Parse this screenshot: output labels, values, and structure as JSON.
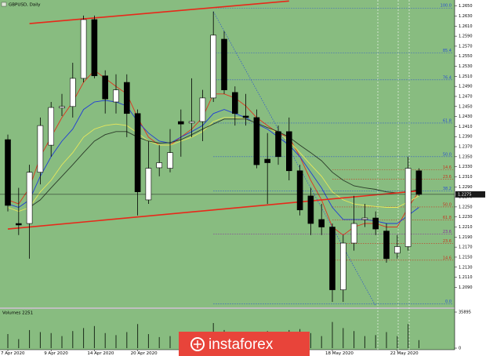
{
  "chart_data": {
    "type": "candlestick",
    "title": "GBPUSD, Daily",
    "bull_color": "#ffffff",
    "bear_color": "#000000",
    "background": "#88bc80",
    "categories": [
      "7 Apr 2020",
      null,
      null,
      null,
      "9 Apr 2020",
      null,
      null,
      null,
      "14 Apr 2020",
      null,
      null,
      null,
      "20 Apr 2020",
      null,
      null,
      null,
      null,
      null,
      null,
      null,
      null,
      null,
      null,
      null,
      null,
      null,
      null,
      null,
      null,
      null,
      "18 May 2020",
      null,
      null,
      null,
      null,
      null,
      "22 May 2020",
      null,
      null
    ],
    "open": [
      1.2384,
      1.2217,
      1.2217,
      1.2319,
      1.2373,
      1.2447,
      1.245,
      1.2506,
      1.2623,
      1.2511,
      1.2459,
      1.2498,
      1.2436,
      1.2264,
      1.2328,
      1.2327,
      1.242,
      1.2417,
      1.242,
      1.2467,
      1.2584,
      1.2478,
      1.2431,
      1.2428,
      1.2345,
      1.24,
      1.24,
      1.2322,
      1.2272,
      1.2225,
      1.221,
      1.2085,
      1.2178,
      1.2225,
      1.2228,
      1.2202,
      1.2158,
      1.2171,
      1.2322
    ],
    "high": [
      1.2394,
      1.2288,
      1.2334,
      1.2428,
      1.2459,
      1.2475,
      1.2537,
      1.2631,
      1.2631,
      1.2522,
      1.2514,
      1.2514,
      1.2444,
      1.2381,
      1.2373,
      1.2405,
      1.2444,
      1.2506,
      1.2483,
      1.2639,
      1.26,
      1.249,
      1.2475,
      1.2444,
      1.2397,
      1.2412,
      1.2428,
      1.2334,
      1.2288,
      1.2256,
      1.2217,
      1.2194,
      1.2272,
      1.2256,
      1.2241,
      1.2217,
      1.2194,
      1.235,
      1.2327
    ],
    "low": [
      1.2241,
      1.2194,
      1.2147,
      1.2295,
      1.235,
      1.2431,
      1.2428,
      1.2498,
      1.2506,
      1.2436,
      1.2436,
      1.2389,
      1.2233,
      1.2256,
      1.2311,
      1.2319,
      1.235,
      1.2389,
      1.2381,
      1.2459,
      1.2475,
      1.2412,
      1.2412,
      1.2327,
      1.2256,
      1.2334,
      1.2303,
      1.2233,
      1.2194,
      1.2194,
      1.2061,
      1.2061,
      1.2163,
      1.221,
      1.2194,
      1.2139,
      1.2147,
      1.2163,
      1.2272
    ],
    "close": [
      1.2253,
      1.2214,
      1.2319,
      1.2412,
      1.2448,
      1.245,
      1.2506,
      1.2623,
      1.2511,
      1.2465,
      1.2483,
      1.2436,
      1.228,
      1.2327,
      1.2338,
      1.2358,
      1.2415,
      1.242,
      1.2467,
      1.2592,
      1.2483,
      1.2436,
      1.2428,
      1.2334,
      1.2338,
      1.235,
      1.2322,
      1.2244,
      1.2217,
      1.221,
      1.2085,
      1.2178,
      1.2217,
      1.2228,
      1.2206,
      1.2147,
      1.2171,
      1.2327,
      1.2275
    ],
    "last_price_label": "1.2275",
    "ma": [
      {
        "color": "#e0341e",
        "values": [
          1.2264,
          1.2256,
          1.2288,
          1.235,
          1.2389,
          1.2428,
          1.2459,
          1.2498,
          1.2522,
          1.2506,
          1.249,
          1.2475,
          1.2428,
          1.2389,
          1.2373,
          1.2373,
          1.2389,
          1.2405,
          1.2428,
          1.2475,
          1.2475,
          1.2467,
          1.2451,
          1.2428,
          1.2412,
          1.2397,
          1.2389,
          1.235,
          1.2303,
          1.2264,
          1.221,
          1.2194,
          1.221,
          1.2217,
          1.2217,
          1.221,
          1.221,
          1.2249,
          1.228
        ]
      },
      {
        "color": "#1f3cd6",
        "values": [
          1.2256,
          1.2249,
          1.2264,
          1.2311,
          1.235,
          1.2381,
          1.2405,
          1.2444,
          1.2459,
          1.2462,
          1.2459,
          1.2451,
          1.242,
          1.2397,
          1.2381,
          1.2377,
          1.2389,
          1.24,
          1.2412,
          1.2436,
          1.2444,
          1.2436,
          1.2428,
          1.2415,
          1.2405,
          1.2389,
          1.2373,
          1.235,
          1.2319,
          1.2288,
          1.2249,
          1.2225,
          1.2225,
          1.2225,
          1.2222,
          1.2217,
          1.2217,
          1.2233,
          1.2249
        ]
      },
      {
        "color": "#e8e85a",
        "values": [
          1.2249,
          1.2241,
          1.2249,
          1.228,
          1.2303,
          1.2334,
          1.2358,
          1.2389,
          1.2405,
          1.2412,
          1.2415,
          1.2412,
          1.2397,
          1.2381,
          1.2373,
          1.2373,
          1.2381,
          1.2389,
          1.24,
          1.242,
          1.2428,
          1.2428,
          1.2425,
          1.2417,
          1.2408,
          1.2397,
          1.2381,
          1.2358,
          1.2334,
          1.2311,
          1.228,
          1.2264,
          1.2256,
          1.2253,
          1.2251,
          1.2249,
          1.2249,
          1.226,
          1.2272
        ]
      },
      {
        "color": "#2a3a28",
        "values": [
          null,
          null,
          1.2249,
          1.2264,
          1.2288,
          1.2311,
          1.2334,
          1.2358,
          1.2381,
          1.2394,
          1.24,
          1.24,
          1.2389,
          1.2381,
          1.2377,
          1.2378,
          1.2384,
          1.2394,
          1.2405,
          1.2415,
          1.2425,
          1.2425,
          1.2425,
          1.2417,
          1.2408,
          1.24,
          1.2389,
          1.2373,
          1.2358,
          1.2342,
          1.2319,
          1.2303,
          1.2292,
          1.2288,
          1.2285,
          1.228,
          1.2278,
          1.228,
          1.2285
        ]
      }
    ],
    "trendlines": [
      {
        "color": "#e8281a",
        "points": [
          [
            2,
            1.2615
          ],
          [
            26,
            1.266
          ]
        ]
      },
      {
        "color": "#e8281a",
        "points": [
          [
            0,
            1.2206
          ],
          [
            38,
            1.2282
          ]
        ]
      },
      {
        "color": "#2a50d0",
        "points": [
          [
            19,
            1.2639
          ],
          [
            34,
            1.2053
          ]
        ]
      }
    ],
    "fibo": [
      {
        "label": "100.0",
        "value": 1.2646,
        "color": "#2a50d0",
        "from": 19
      },
      {
        "label": "85.4",
        "value": 1.2557,
        "color": "#2a50d0",
        "from": 19
      },
      {
        "label": "76.4",
        "value": 1.2503,
        "color": "#2a50d0",
        "from": 19
      },
      {
        "label": "61.8",
        "value": 1.2417,
        "color": "#2a50d0",
        "from": 19
      },
      {
        "label": "50.0",
        "value": 1.235,
        "color": "#2a50d0",
        "from": 19
      },
      {
        "label": "38.2",
        "value": 1.2282,
        "color": "#2a50d0",
        "from": 19
      },
      {
        "label": "23.6",
        "value": 1.2196,
        "color": "#8a2aa0",
        "from": 19
      },
      {
        "label": "0.0",
        "value": 1.2057,
        "color": "#2a50d0",
        "from": 19
      },
      {
        "label": "14.6",
        "value": 1.2324,
        "color": "#c8321e",
        "from": 30
      },
      {
        "label": "23.6",
        "value": 1.2305,
        "color": "#c8321e",
        "from": 30
      },
      {
        "label": "50.0",
        "value": 1.225,
        "color": "#c8321e",
        "from": 30
      },
      {
        "label": "61.8",
        "value": 1.2224,
        "color": "#c8321e",
        "from": 30
      },
      {
        "label": "23.6",
        "value": 1.2177,
        "color": "#c8321e",
        "from": 30
      },
      {
        "label": "14.6",
        "value": 1.2144,
        "color": "#c8321e",
        "from": 30
      }
    ],
    "ylim": [
      1.205,
      1.2662
    ],
    "yticks": [
      {
        "value": 1.209,
        "label": "1.2090"
      },
      {
        "value": 1.211,
        "label": "1.2110"
      },
      {
        "value": 1.213,
        "label": "1.2130"
      },
      {
        "value": 1.215,
        "label": "1.2150"
      },
      {
        "value": 1.217,
        "label": "1.2170"
      },
      {
        "value": 1.219,
        "label": "1.2190"
      },
      {
        "value": 1.221,
        "label": "1.2210"
      },
      {
        "value": 1.223,
        "label": "1.2230"
      },
      {
        "value": 1.225,
        "label": "1.2250"
      },
      {
        "value": 1.227,
        "label": "1.2270"
      },
      {
        "value": 1.229,
        "label": "1.2290"
      },
      {
        "value": 1.231,
        "label": "1.2310"
      },
      {
        "value": 1.233,
        "label": "1.2330"
      },
      {
        "value": 1.235,
        "label": "1.2350"
      },
      {
        "value": 1.237,
        "label": "1.2370"
      },
      {
        "value": 1.239,
        "label": "1.2390"
      },
      {
        "value": 1.241,
        "label": "1.2410"
      },
      {
        "value": 1.243,
        "label": "1.2430"
      },
      {
        "value": 1.245,
        "label": "1.2450"
      },
      {
        "value": 1.247,
        "label": "1.2470"
      },
      {
        "value": 1.249,
        "label": "1.2490"
      },
      {
        "value": 1.251,
        "label": "1.2510"
      },
      {
        "value": 1.253,
        "label": "1.2530"
      },
      {
        "value": 1.255,
        "label": "1.2550"
      },
      {
        "value": 1.257,
        "label": "1.2570"
      },
      {
        "value": 1.259,
        "label": "1.2590"
      },
      {
        "value": 1.261,
        "label": "1.2610"
      },
      {
        "value": 1.263,
        "label": "1.2630"
      },
      {
        "value": 1.265,
        "label": "1.2650"
      }
    ],
    "volume": {
      "title": "Volumes 2251",
      "color": "#1a2a18",
      "values": [
        14000,
        9000,
        18000,
        16000,
        15000,
        12000,
        17000,
        20000,
        22000,
        15000,
        13000,
        16000,
        24000,
        14000,
        11000,
        12000,
        13000,
        12000,
        14000,
        25000,
        18000,
        15000,
        12000,
        16000,
        17000,
        14000,
        18000,
        19000,
        15000,
        12000,
        26000,
        20000,
        17000,
        12000,
        13000,
        16000,
        12000,
        24000,
        8000
      ],
      "ylim": [
        0,
        35895
      ],
      "yticks": [
        0,
        35895
      ]
    }
  },
  "watermark": "instaforex"
}
